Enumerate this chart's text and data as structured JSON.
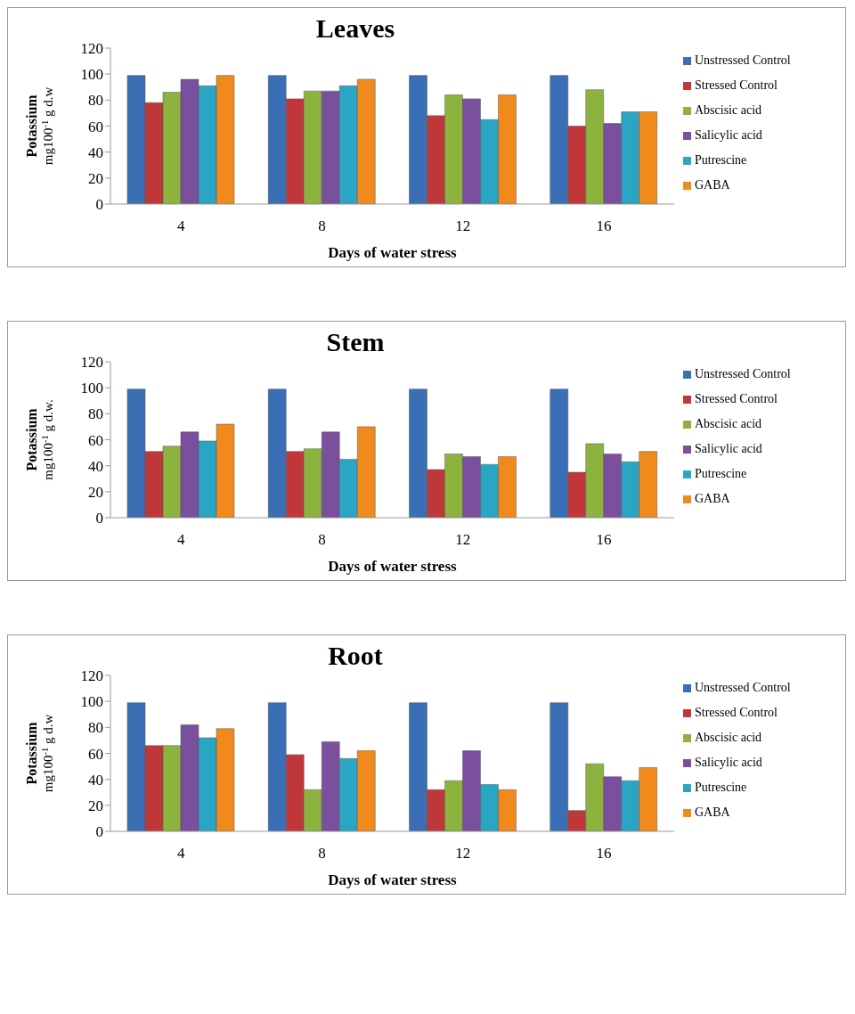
{
  "chart_data": [
    {
      "type": "bar",
      "title": "Leaves",
      "xlabel": "Days of water stress",
      "ylabel": "Potassium mg100$^{-1}$ g d.w",
      "categories": [
        "4",
        "8",
        "12",
        "16"
      ],
      "ylim": [
        0,
        120
      ],
      "yticks": [
        0,
        20,
        40,
        60,
        80,
        100,
        120
      ],
      "legend": "right",
      "series": [
        {
          "name": "Unstressed Control",
          "color": "#3a6fb5",
          "values": [
            99,
            99,
            99,
            99
          ]
        },
        {
          "name": "Stressed Control",
          "color": "#c0373a",
          "values": [
            78,
            81,
            68,
            60
          ]
        },
        {
          "name": "Abscisic acid",
          "color": "#8db33f",
          "values": [
            86,
            87,
            84,
            88
          ]
        },
        {
          "name": "Salicylic acid",
          "color": "#7a4f9e",
          "values": [
            96,
            87,
            81,
            62
          ]
        },
        {
          "name": "Putrescine",
          "color": "#2aa6c4",
          "values": [
            91,
            91,
            65,
            71
          ]
        },
        {
          "name": "GABA",
          "color": "#f08a1c",
          "values": [
            99,
            96,
            84,
            71
          ]
        }
      ]
    },
    {
      "type": "bar",
      "title": "Stem",
      "xlabel": "Days of water stress",
      "ylabel": "Potassium mg100$^{-1}$ g d.w.",
      "categories": [
        "4",
        "8",
        "12",
        "16"
      ],
      "ylim": [
        0,
        120
      ],
      "yticks": [
        0,
        20,
        40,
        60,
        80,
        100,
        120
      ],
      "legend": "right",
      "series": [
        {
          "name": "Unstressed Control",
          "color": "#3a6fb5",
          "values": [
            99,
            99,
            99,
            99
          ]
        },
        {
          "name": "Stressed Control",
          "color": "#c0373a",
          "values": [
            51,
            51,
            37,
            35
          ]
        },
        {
          "name": "Abscisic acid",
          "color": "#8db33f",
          "values": [
            55,
            53,
            49,
            57
          ]
        },
        {
          "name": "Salicylic acid",
          "color": "#7a4f9e",
          "values": [
            66,
            66,
            47,
            49
          ]
        },
        {
          "name": "Putrescine",
          "color": "#2aa6c4",
          "values": [
            59,
            45,
            41,
            43
          ]
        },
        {
          "name": "GABA",
          "color": "#f08a1c",
          "values": [
            72,
            70,
            47,
            51
          ]
        }
      ]
    },
    {
      "type": "bar",
      "title": "Root",
      "xlabel": "Days of water stress",
      "ylabel": "Potassium mg100$^{-1}$ g d.w",
      "categories": [
        "4",
        "8",
        "12",
        "16"
      ],
      "ylim": [
        0,
        120
      ],
      "yticks": [
        0,
        20,
        40,
        60,
        80,
        100,
        120
      ],
      "legend": "right",
      "series": [
        {
          "name": "Unstressed Control",
          "color": "#3a6fb5",
          "values": [
            99,
            99,
            99,
            99
          ]
        },
        {
          "name": "Stressed Control",
          "color": "#c0373a",
          "values": [
            66,
            59,
            32,
            16
          ]
        },
        {
          "name": "Abscisic acid",
          "color": "#8db33f",
          "values": [
            66,
            32,
            39,
            52
          ]
        },
        {
          "name": "Salicylic acid",
          "color": "#7a4f9e",
          "values": [
            82,
            69,
            62,
            42
          ]
        },
        {
          "name": "Putrescine",
          "color": "#2aa6c4",
          "values": [
            72,
            56,
            36,
            39
          ]
        },
        {
          "name": "GABA",
          "color": "#f08a1c",
          "values": [
            79,
            62,
            32,
            49
          ]
        }
      ]
    }
  ]
}
